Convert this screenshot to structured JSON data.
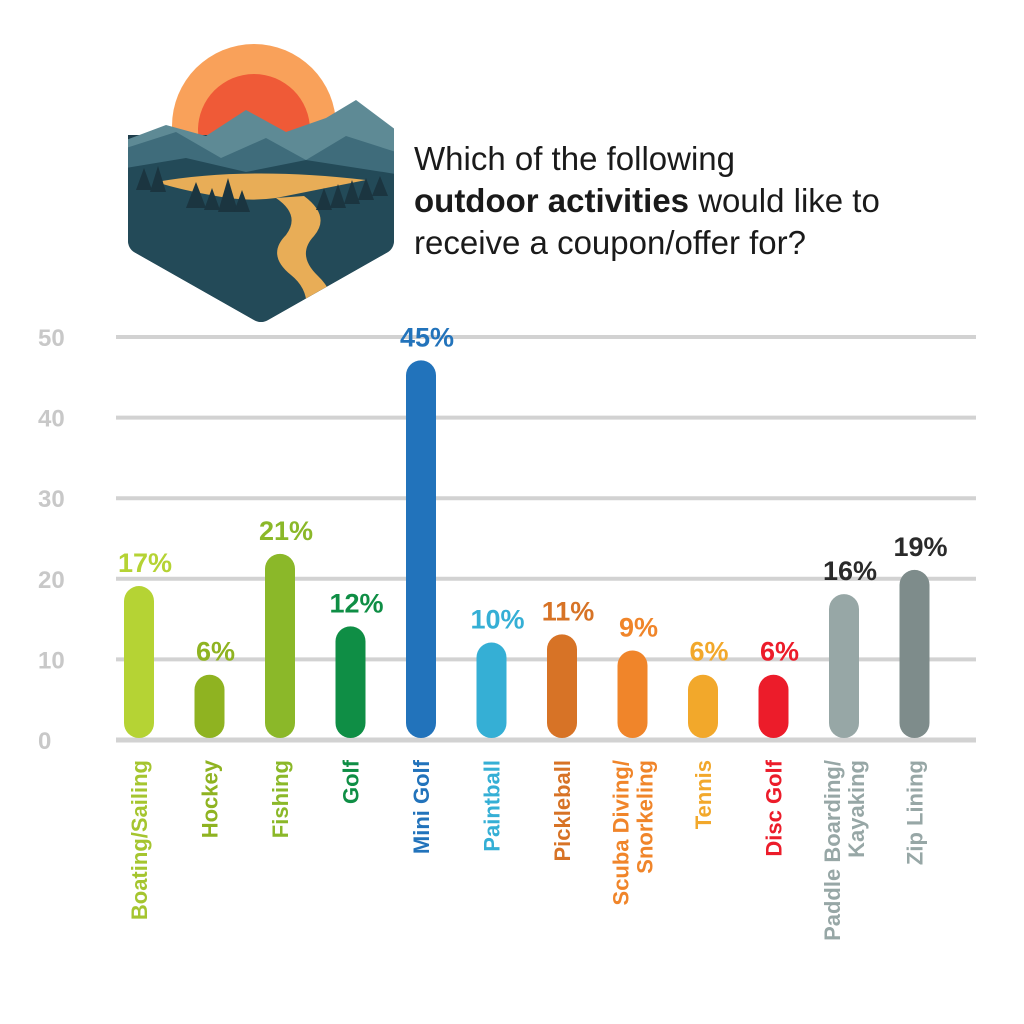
{
  "question": {
    "line1": "Which of the following",
    "bold": "outdoor activities",
    "line2_rest": " would like to",
    "line3": "receive a coupon/offer for?"
  },
  "logo": {
    "icon": "mountain-sunset-river-logo"
  },
  "chart_data": {
    "type": "bar",
    "ylim": [
      0,
      50
    ],
    "yticks": [
      "0",
      "10",
      "20",
      "30",
      "40",
      "50"
    ],
    "grid": true,
    "categories": [
      [
        "Boating/Sailing"
      ],
      [
        "Hockey"
      ],
      [
        "Fishing"
      ],
      [
        "Golf"
      ],
      [
        "Mini Golf"
      ],
      [
        "Paintball"
      ],
      [
        "Pickleball"
      ],
      [
        "Scuba Diving/",
        "Snorkeling"
      ],
      [
        "Tennis"
      ],
      [
        "Disc Golf"
      ],
      [
        "Paddle Boarding/",
        "Kayaking"
      ],
      [
        "Zip Lining"
      ]
    ],
    "values": [
      17,
      6,
      21,
      12,
      45,
      10,
      11,
      9,
      6,
      6,
      16,
      19
    ],
    "labels": [
      "17%",
      "6%",
      "21%",
      "12%",
      "45%",
      "10%",
      "11%",
      "9%",
      "6%",
      "6%",
      "16%",
      "19%"
    ],
    "bar_colors": [
      "#b5d334",
      "#8fb321",
      "#8bb829",
      "#0f8e45",
      "#2273bb",
      "#35afd5",
      "#d77326",
      "#f0852a",
      "#f2a82b",
      "#ec1c2a",
      "#97a7a6",
      "#7e8c8b"
    ],
    "label_colors": [
      "#b5d334",
      "#8fb321",
      "#8bb829",
      "#0f8e45",
      "#2273bb",
      "#35afd5",
      "#d77326",
      "#f0852a",
      "#f2a82b",
      "#ec1c2a",
      "#2a2a2a",
      "#2a2a2a"
    ],
    "category_colors": [
      "#a5c52f",
      "#8fb321",
      "#8bb829",
      "#0f8e45",
      "#2273bb",
      "#35afd5",
      "#d77326",
      "#f0852a",
      "#f2a82b",
      "#ec1c2a",
      "#97a7a6",
      "#97a7a6"
    ]
  }
}
